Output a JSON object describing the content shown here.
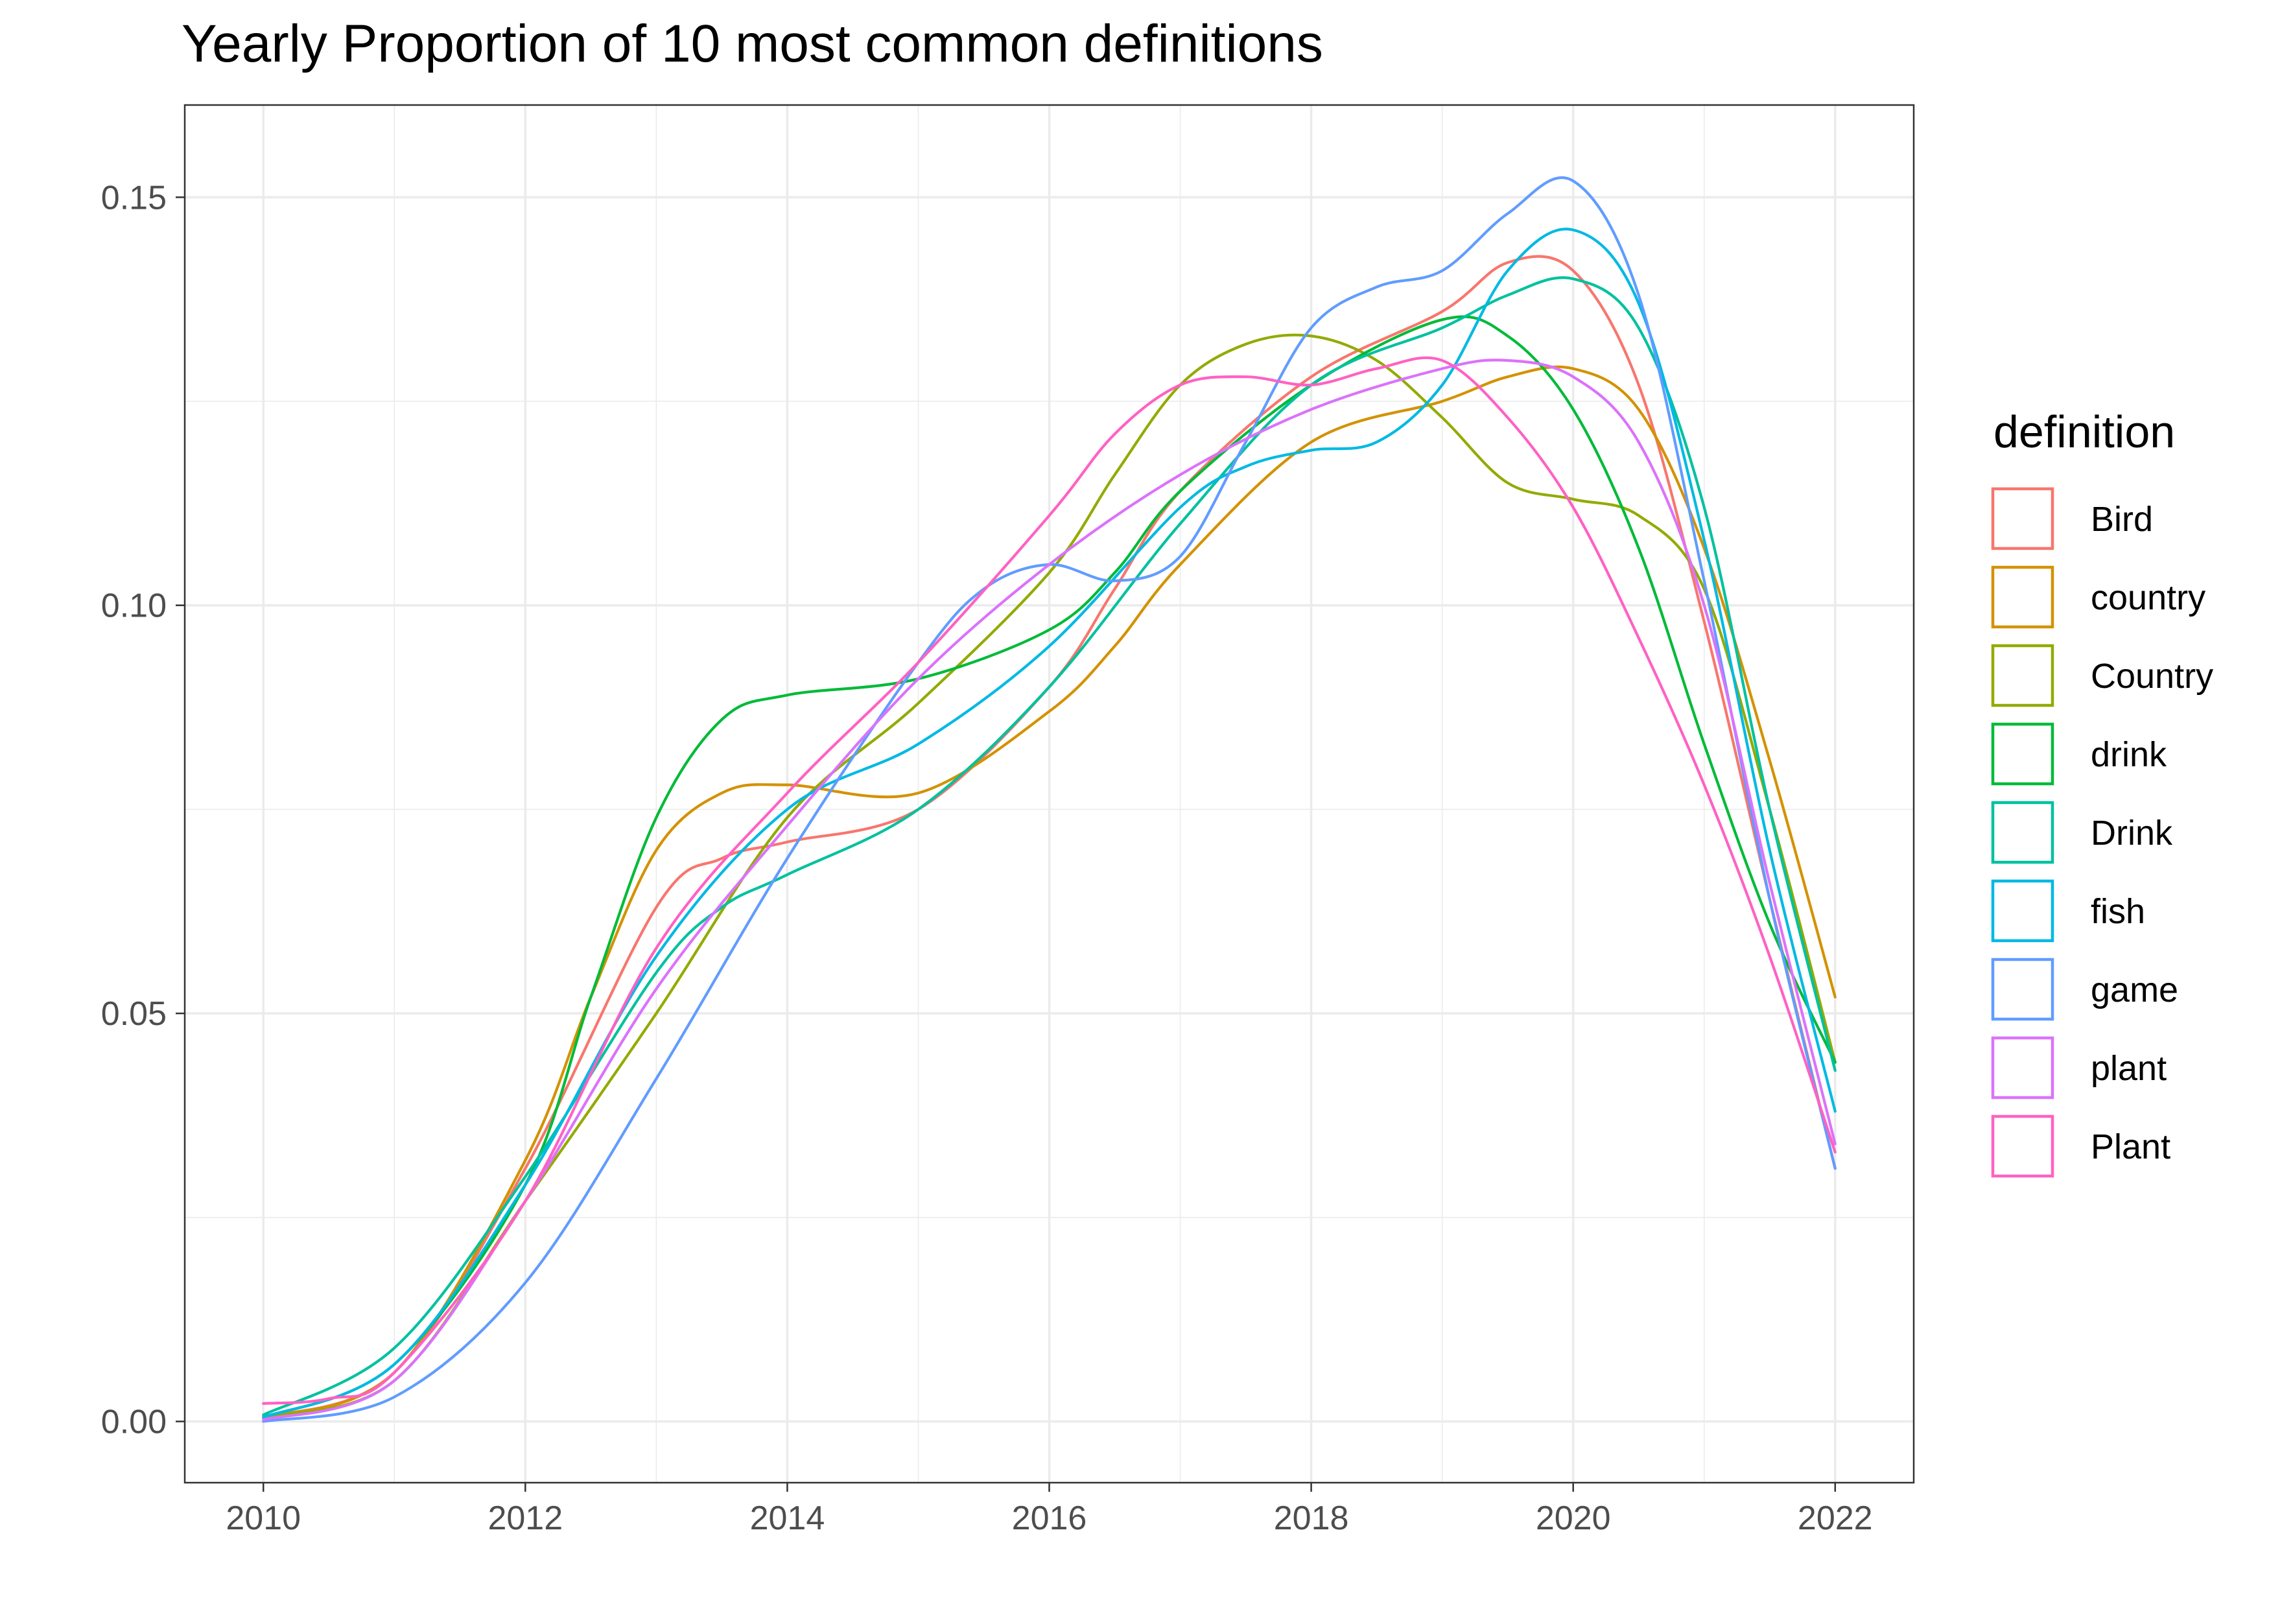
{
  "chart_data": {
    "type": "line",
    "title": "Yearly Proportion of 10 most common definitions",
    "xlabel": "",
    "ylabel": "",
    "xlim": [
      2009.4,
      2022.6
    ],
    "ylim": [
      -0.0075,
      0.1613
    ],
    "x_ticks": [
      2010,
      2012,
      2014,
      2016,
      2018,
      2020,
      2022
    ],
    "x_tick_labels": [
      "2010",
      "2012",
      "2014",
      "2016",
      "2018",
      "2020",
      "2022"
    ],
    "y_ticks": [
      0.0,
      0.05,
      0.1,
      0.15
    ],
    "y_tick_labels": [
      "0.00",
      "0.05",
      "0.10",
      "0.15"
    ],
    "grid": true,
    "legend_title": "definition",
    "legend_position": "right",
    "series": [
      {
        "name": "Bird",
        "color": "#F8766D",
        "x": [
          2010,
          2011,
          2012,
          2013,
          2013.5,
          2014,
          2015,
          2016,
          2016.5,
          2017,
          2018,
          2019,
          2019.5,
          2020,
          2020.5,
          2021,
          2021.5,
          2022
        ],
        "y": [
          0.0005,
          0.006,
          0.031,
          0.063,
          0.069,
          0.071,
          0.075,
          0.09,
          0.102,
          0.114,
          0.128,
          0.136,
          0.142,
          0.141,
          0.127,
          0.098,
          0.064,
          0.031
        ]
      },
      {
        "name": "country",
        "color": "#D39200",
        "x": [
          2010,
          2011,
          2012,
          2012.5,
          2013,
          2013.5,
          2014,
          2015,
          2016,
          2016.5,
          2017,
          2018,
          2019,
          2019.5,
          2020,
          2020.5,
          2021,
          2021.5,
          2022
        ],
        "y": [
          0.0005,
          0.006,
          0.032,
          0.052,
          0.07,
          0.077,
          0.078,
          0.077,
          0.087,
          0.095,
          0.105,
          0.12,
          0.125,
          0.128,
          0.129,
          0.124,
          0.107,
          0.081,
          0.052
        ]
      },
      {
        "name": "Country",
        "color": "#93AA00",
        "x": [
          2010,
          2011,
          2012,
          2013,
          2014,
          2015,
          2016,
          2016.5,
          2017,
          2017.5,
          2018,
          2018.5,
          2019,
          2019.5,
          2020,
          2020.5,
          2021,
          2021.5,
          2022
        ],
        "y": [
          0.0005,
          0.005,
          0.027,
          0.05,
          0.074,
          0.088,
          0.104,
          0.116,
          0.127,
          0.132,
          0.133,
          0.13,
          0.123,
          0.115,
          0.113,
          0.111,
          0.102,
          0.075,
          0.044
        ]
      },
      {
        "name": "drink",
        "color": "#00BA38",
        "x": [
          2010,
          2011,
          2012,
          2012.5,
          2013,
          2013.5,
          2014,
          2015,
          2016,
          2016.5,
          2017,
          2018,
          2019,
          2019.5,
          2020,
          2020.5,
          2021,
          2021.5,
          2022
        ],
        "y": [
          0.0005,
          0.007,
          0.029,
          0.052,
          0.074,
          0.086,
          0.089,
          0.091,
          0.097,
          0.104,
          0.114,
          0.127,
          0.135,
          0.133,
          0.124,
          0.107,
          0.083,
          0.061,
          0.044
        ]
      },
      {
        "name": "Drink",
        "color": "#00C19F",
        "x": [
          2010,
          2011,
          2012,
          2013,
          2013.5,
          2014,
          2015,
          2016,
          2017,
          2018,
          2019,
          2019.5,
          2020,
          2020.5,
          2021,
          2021.5,
          2022
        ],
        "y": [
          0.0008,
          0.009,
          0.03,
          0.055,
          0.063,
          0.067,
          0.075,
          0.09,
          0.11,
          0.127,
          0.134,
          0.138,
          0.14,
          0.134,
          0.112,
          0.075,
          0.043
        ]
      },
      {
        "name": "fish",
        "color": "#00B9E3",
        "x": [
          2010,
          2011,
          2012,
          2013,
          2014,
          2015,
          2016,
          2017,
          2017.5,
          2018,
          2018.5,
          2019,
          2019.5,
          2020,
          2020.5,
          2021,
          2021.5,
          2022
        ],
        "y": [
          0.0005,
          0.007,
          0.029,
          0.057,
          0.075,
          0.083,
          0.095,
          0.112,
          0.117,
          0.119,
          0.12,
          0.127,
          0.141,
          0.146,
          0.137,
          0.108,
          0.07,
          0.038
        ]
      },
      {
        "name": "game",
        "color": "#619CFF",
        "x": [
          2010,
          2011,
          2012,
          2013,
          2014,
          2015,
          2015.5,
          2016,
          2016.5,
          2017,
          2017.5,
          2018,
          2018.5,
          2019,
          2019.5,
          2020,
          2020.5,
          2021,
          2021.5,
          2022
        ],
        "y": [
          0.0,
          0.003,
          0.017,
          0.042,
          0.069,
          0.093,
          0.102,
          0.105,
          0.103,
          0.106,
          0.12,
          0.134,
          0.139,
          0.141,
          0.148,
          0.152,
          0.138,
          0.103,
          0.064,
          0.031
        ]
      },
      {
        "name": "plant",
        "color": "#DB72FB",
        "x": [
          2010,
          2011,
          2012,
          2013,
          2014,
          2015,
          2016,
          2017,
          2018,
          2019,
          2019.5,
          2020,
          2020.5,
          2021,
          2021.5,
          2022
        ],
        "y": [
          0.0002,
          0.005,
          0.027,
          0.053,
          0.073,
          0.091,
          0.105,
          0.116,
          0.124,
          0.129,
          0.13,
          0.128,
          0.12,
          0.1,
          0.066,
          0.034
        ]
      },
      {
        "name": "Plant",
        "color": "#FF61C3",
        "x": [
          2010,
          2010.5,
          2011,
          2012,
          2013,
          2014,
          2015,
          2016,
          2016.5,
          2017,
          2017.5,
          2018,
          2018.5,
          2019,
          2019.5,
          2020,
          2020.5,
          2021,
          2021.5,
          2022
        ],
        "y": [
          0.0022,
          0.0028,
          0.006,
          0.027,
          0.058,
          0.077,
          0.093,
          0.111,
          0.121,
          0.127,
          0.128,
          0.127,
          0.129,
          0.13,
          0.123,
          0.112,
          0.096,
          0.078,
          0.057,
          0.033
        ]
      }
    ]
  }
}
